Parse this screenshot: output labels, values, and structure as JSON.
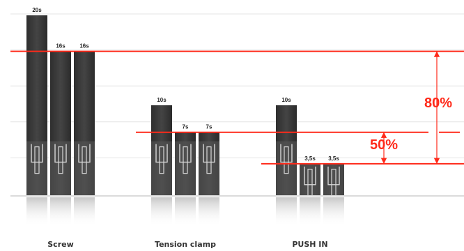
{
  "chart_data": {
    "type": "bar",
    "categories": [
      "Screw",
      "Tension clamp",
      "PUSH IN"
    ],
    "series": [
      {
        "values": [
          20,
          10,
          10
        ]
      },
      {
        "values": [
          16,
          7,
          3.5
        ]
      },
      {
        "values": [
          16,
          7,
          3.5
        ]
      }
    ],
    "value_labels": [
      [
        "20s",
        "16s",
        "16s"
      ],
      [
        "10s",
        "7s",
        "7s"
      ],
      [
        "10s",
        "3,5s",
        "3,5s"
      ]
    ],
    "reference_lines": [
      {
        "value": 16
      },
      {
        "value": 7
      },
      {
        "value": 3.5
      }
    ],
    "annotations": [
      {
        "text": "80%"
      },
      {
        "text": "50%"
      }
    ],
    "ylim": [
      0,
      20
    ],
    "grid": true,
    "colors": {
      "bar": "#3a3a3a",
      "bar_light": "#595959",
      "reference": "#ff2a1a",
      "grid": "#e4e4e4"
    }
  }
}
